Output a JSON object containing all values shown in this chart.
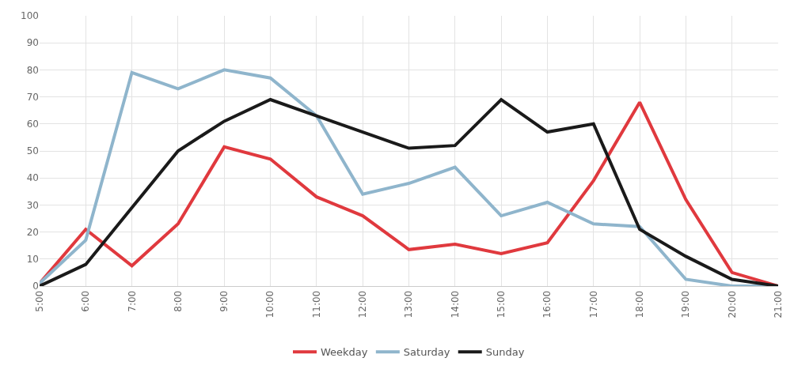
{
  "chart_data": {
    "type": "line",
    "categories": [
      "5:00",
      "6:00",
      "7:00",
      "8:00",
      "9:00",
      "10:00",
      "11:00",
      "12:00",
      "13:00",
      "14:00",
      "15:00",
      "16:00",
      "17:00",
      "18:00",
      "19:00",
      "20:00",
      "21:00"
    ],
    "series": [
      {
        "name": "Weekday",
        "color": "#e0393e",
        "values": [
          1,
          21,
          7.5,
          23,
          51.5,
          47,
          33,
          26,
          13.5,
          15.5,
          12,
          16,
          39,
          68,
          32,
          5,
          0
        ]
      },
      {
        "name": "Saturday",
        "color": "#8fb5cc",
        "values": [
          1,
          17,
          79,
          73,
          80,
          77,
          63,
          34,
          38,
          44,
          26,
          31,
          23,
          22,
          2.5,
          0,
          0
        ]
      },
      {
        "name": "Sunday",
        "color": "#1a1a1a",
        "values": [
          0,
          8,
          29,
          50,
          61,
          69,
          63,
          57,
          51,
          52,
          69,
          57,
          60,
          21,
          11,
          2.5,
          0
        ]
      }
    ],
    "ylim": [
      0,
      100
    ],
    "yticks": [
      0,
      10,
      20,
      30,
      40,
      50,
      60,
      70,
      80,
      90,
      100
    ],
    "grid": true,
    "legend": "bottom",
    "marker": "none",
    "line_style": "solid"
  }
}
